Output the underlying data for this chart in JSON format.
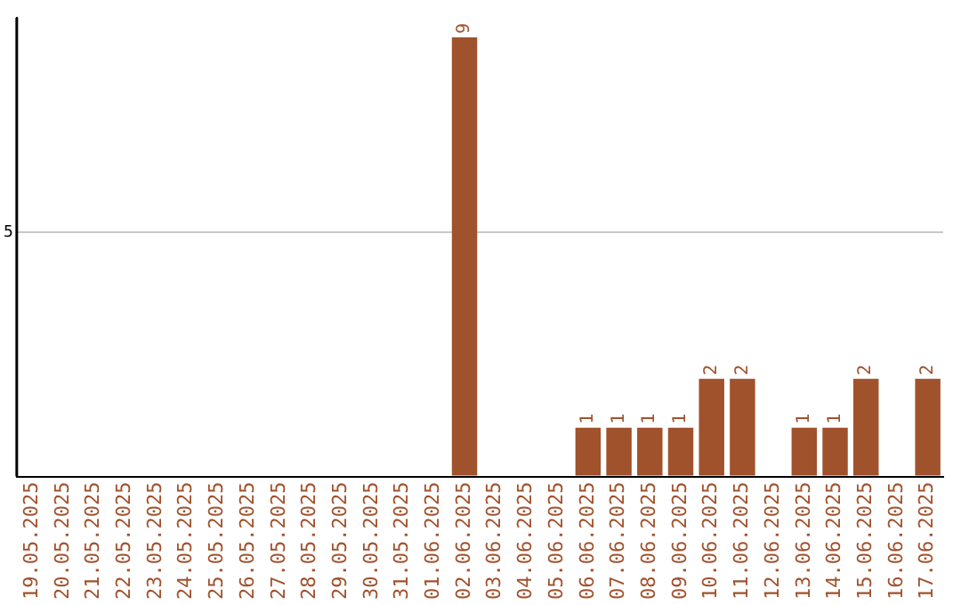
{
  "chart_data": {
    "type": "bar",
    "categories": [
      "19.05.2025",
      "20.05.2025",
      "21.05.2025",
      "22.05.2025",
      "23.05.2025",
      "24.05.2025",
      "25.05.2025",
      "26.05.2025",
      "27.05.2025",
      "28.05.2025",
      "29.05.2025",
      "30.05.2025",
      "31.05.2025",
      "01.06.2025",
      "02.06.2025",
      "03.06.2025",
      "04.06.2025",
      "05.06.2025",
      "06.06.2025",
      "07.06.2025",
      "08.06.2025",
      "09.06.2025",
      "10.06.2025",
      "11.06.2025",
      "12.06.2025",
      "13.06.2025",
      "14.06.2025",
      "15.06.2025",
      "16.06.2025",
      "17.06.2025"
    ],
    "values": [
      null,
      null,
      null,
      null,
      null,
      null,
      null,
      null,
      null,
      null,
      null,
      null,
      null,
      null,
      9,
      null,
      null,
      null,
      1,
      1,
      1,
      1,
      2,
      2,
      null,
      1,
      1,
      2,
      null,
      2
    ],
    "data_labels": true,
    "color": "#a0522d",
    "ylim": [
      0,
      9.4
    ],
    "yticks": [
      {
        "value": 0,
        "label": null
      },
      5
    ],
    "grid": "y",
    "legend": false
  }
}
